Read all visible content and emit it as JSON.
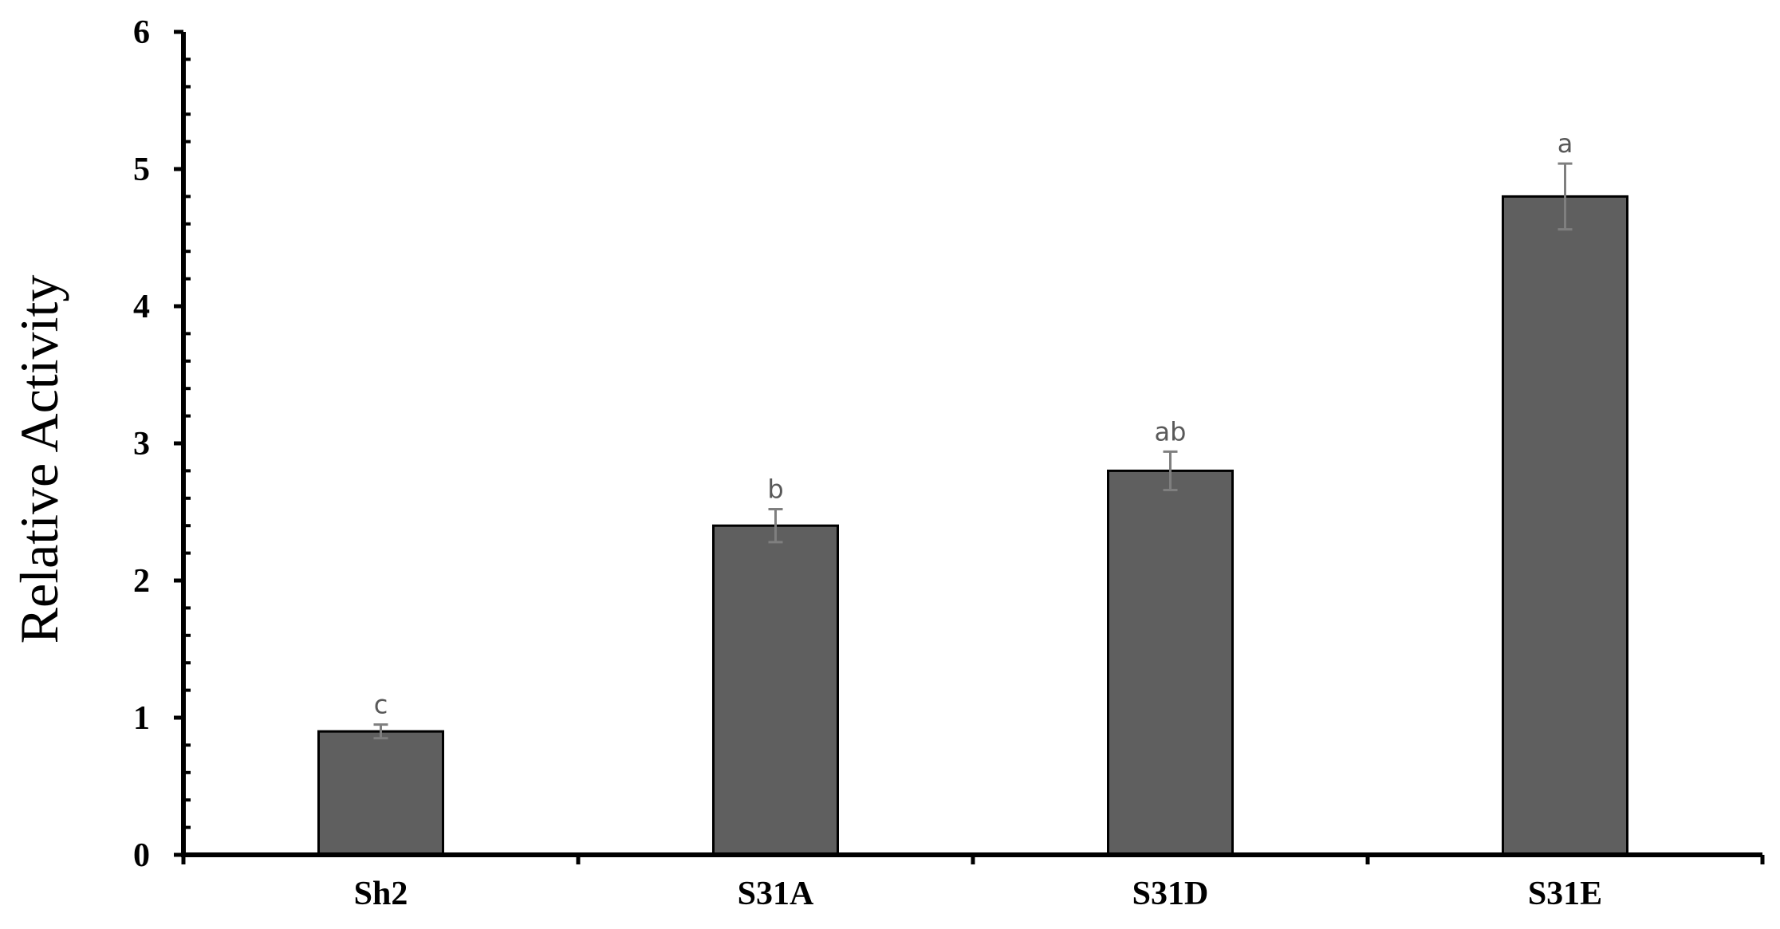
{
  "chart_data": {
    "type": "bar",
    "title": "",
    "xlabel": "",
    "ylabel": "Relative Activity",
    "categories": [
      "Sh2",
      "S31A",
      "S31D",
      "S31E"
    ],
    "values": [
      0.9,
      2.4,
      2.8,
      4.8
    ],
    "errors": [
      0.05,
      0.12,
      0.14,
      0.24
    ],
    "significance": [
      "c",
      "b",
      "ab",
      "a"
    ],
    "ylim": [
      0,
      6
    ],
    "yticks": [
      0,
      1,
      2,
      3,
      4,
      5,
      6
    ],
    "ytick_labels": [
      "0",
      "1",
      "2",
      "3",
      "4",
      "5",
      "6"
    ],
    "grid": false,
    "legend": "none",
    "colors": {
      "bar_fill": "#5f5f5f",
      "bar_stroke": "#000000",
      "error_bar": "#7f7f7f",
      "sig_text": "#595959",
      "axis": "#000000"
    }
  }
}
